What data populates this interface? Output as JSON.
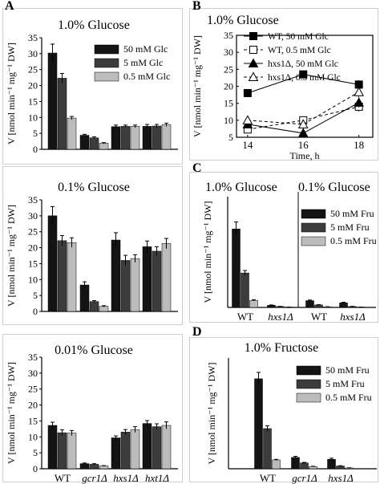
{
  "colors": {
    "dark": "#141414",
    "mid": "#3c3c3c",
    "light": "#bcbcbc",
    "axis": "#000000",
    "line": "#000000"
  },
  "chart_data": [
    {
      "panel_letter": "A",
      "title": "1.0% Glucose",
      "type": "bar",
      "ylabel": "V [nmol min⁻¹ mg⁻¹ DW]",
      "ylim": [
        0,
        35
      ],
      "yticks": [
        0,
        5,
        10,
        15,
        20,
        25,
        30,
        35
      ],
      "categories": [
        "WT",
        "gcr1Δ",
        "hxs1Δ",
        "hxt1Δ"
      ],
      "series": [
        {
          "name": "50 mM Glc",
          "values": [
            30.2,
            4.4,
            7.1,
            7.2
          ],
          "errors": [
            2.8,
            0.3,
            0.5,
            0.6
          ]
        },
        {
          "name": "5 mM Glc",
          "values": [
            22.3,
            3.6,
            7.2,
            7.3
          ],
          "errors": [
            1.5,
            0.3,
            0.4,
            0.5
          ]
        },
        {
          "name": "0.5 mM Glc",
          "values": [
            9.8,
            1.9,
            7.2,
            7.7
          ],
          "errors": [
            0.5,
            0.2,
            0.4,
            0.5
          ]
        }
      ],
      "show_xticklabels": false
    },
    {
      "panel_letter": "",
      "title": "0.1% Glucose",
      "type": "bar",
      "ylabel": "V [nmol min⁻¹ mg⁻¹ DW]",
      "ylim": [
        0,
        35
      ],
      "yticks": [
        0,
        5,
        10,
        15,
        20,
        25,
        30,
        35
      ],
      "categories": [
        "WT",
        "gcr1Δ",
        "hxs1Δ",
        "hxt1Δ"
      ],
      "series": [
        {
          "name": "50 mM Glc",
          "values": [
            30.0,
            8.3,
            22.4,
            20.3
          ],
          "errors": [
            2.9,
            1.0,
            2.3,
            1.8
          ]
        },
        {
          "name": "5 mM Glc",
          "values": [
            22.2,
            3.1,
            16.0,
            18.9
          ],
          "errors": [
            1.6,
            0.3,
            1.6,
            1.4
          ]
        },
        {
          "name": "0.5 mM Glc",
          "values": [
            21.6,
            1.6,
            16.6,
            21.3
          ],
          "errors": [
            1.5,
            0.2,
            1.2,
            1.6
          ]
        }
      ],
      "show_xticklabels": false
    },
    {
      "panel_letter": "",
      "title": "0.01% Glucose",
      "type": "bar",
      "ylabel": "V [nmol min⁻¹ mg⁻¹ DW]",
      "ylim": [
        0,
        35
      ],
      "yticks": [
        0,
        5,
        10,
        15,
        20,
        25,
        30,
        35
      ],
      "categories": [
        "WT",
        "gcr1Δ",
        "hxs1Δ",
        "hxt1Δ"
      ],
      "series": [
        {
          "name": "50 mM Glc",
          "values": [
            13.6,
            1.6,
            9.7,
            14.2
          ],
          "errors": [
            1.0,
            0.2,
            0.6,
            0.9
          ]
        },
        {
          "name": "5 mM Glc",
          "values": [
            11.3,
            1.4,
            11.5,
            13.2
          ],
          "errors": [
            0.9,
            0.2,
            0.8,
            0.9
          ]
        },
        {
          "name": "0.5 mM Glc",
          "values": [
            11.2,
            0.9,
            12.3,
            13.6
          ],
          "errors": [
            0.8,
            0.1,
            0.9,
            1.1
          ]
        }
      ],
      "show_xticklabels": true
    },
    {
      "panel_letter": "B",
      "title": "1.0% Glucose",
      "type": "line",
      "ylabel": "V [nmol min⁻¹ mg⁻¹ DW]",
      "xlabel": "Time, h",
      "xlim": [
        13.6,
        18.5
      ],
      "ylim": [
        5,
        35
      ],
      "xticks": [
        14,
        16,
        18
      ],
      "yticks": [
        5,
        10,
        15,
        20,
        25,
        30,
        35
      ],
      "x": [
        14,
        16,
        18
      ],
      "series": [
        {
          "name": "WT, 50 mM Glc",
          "marker": "square-filled",
          "dash": "solid",
          "values": [
            18.0,
            23.5,
            20.5
          ],
          "errors": [
            1.2,
            1.0,
            1.3
          ]
        },
        {
          "name": "WT, 0.5 mM Glc",
          "marker": "square-open",
          "dash": "dashed",
          "values": [
            7.3,
            10.0,
            14.0
          ],
          "errors": [
            0.8,
            0.8,
            1.5
          ]
        },
        {
          "name": "hxs1Δ, 50 mM Glc",
          "marker": "triangle-filled",
          "dash": "solid",
          "values": [
            8.8,
            6.2,
            15.2
          ],
          "errors": [
            0.8,
            0.5,
            1.5
          ]
        },
        {
          "name": "hxs1Δ, 0.5 mM Glc",
          "marker": "triangle-open",
          "dash": "dashed",
          "values": [
            10.0,
            8.8,
            18.3
          ],
          "errors": [
            0.8,
            0.6,
            1.6
          ]
        }
      ]
    },
    {
      "panel_letter": "C",
      "title": "1.0% Glucose",
      "title2": "0.1% Glucose",
      "type": "bar",
      "ylabel": "V [nmol min⁻¹ mg⁻¹ DW]",
      "ylim": [
        0,
        36
      ],
      "categories": [
        "WT",
        "hxs1Δ",
        "WT",
        "hxs1Δ"
      ],
      "series": [
        {
          "name": "50 mM Fru",
          "values": [
            25.5,
            0.7,
            2.2,
            1.5
          ],
          "errors": [
            2.3,
            0.1,
            0.2,
            0.2
          ]
        },
        {
          "name": "5 mM Fru",
          "values": [
            11.2,
            0.3,
            0.8,
            0.3
          ],
          "errors": [
            0.8,
            0.05,
            0.1,
            0.05
          ]
        },
        {
          "name": "0.5 mM Fru",
          "values": [
            2.3,
            0.1,
            0.2,
            0.1
          ],
          "errors": [
            0.2,
            0.02,
            0.05,
            0.02
          ]
        }
      ]
    },
    {
      "panel_letter": "D",
      "title": "1.0% Fructose",
      "type": "bar",
      "ylabel": "V [nmol min⁻¹ mg⁻¹ DW]",
      "ylim": [
        0,
        40
      ],
      "categories": [
        "WT",
        "gcr1Δ",
        "hxs1Δ"
      ],
      "series": [
        {
          "name": "50 mM Fru",
          "values": [
            32.5,
            4.1,
            3.4
          ],
          "errors": [
            2.3,
            0.4,
            0.4
          ]
        },
        {
          "name": "5 mM Fru",
          "values": [
            14.5,
            2.1,
            1.0
          ],
          "errors": [
            1.0,
            0.2,
            0.1
          ]
        },
        {
          "name": "0.5 mM Fru",
          "values": [
            3.2,
            0.8,
            0.3
          ],
          "errors": [
            0.2,
            0.1,
            0.05
          ]
        }
      ]
    }
  ]
}
